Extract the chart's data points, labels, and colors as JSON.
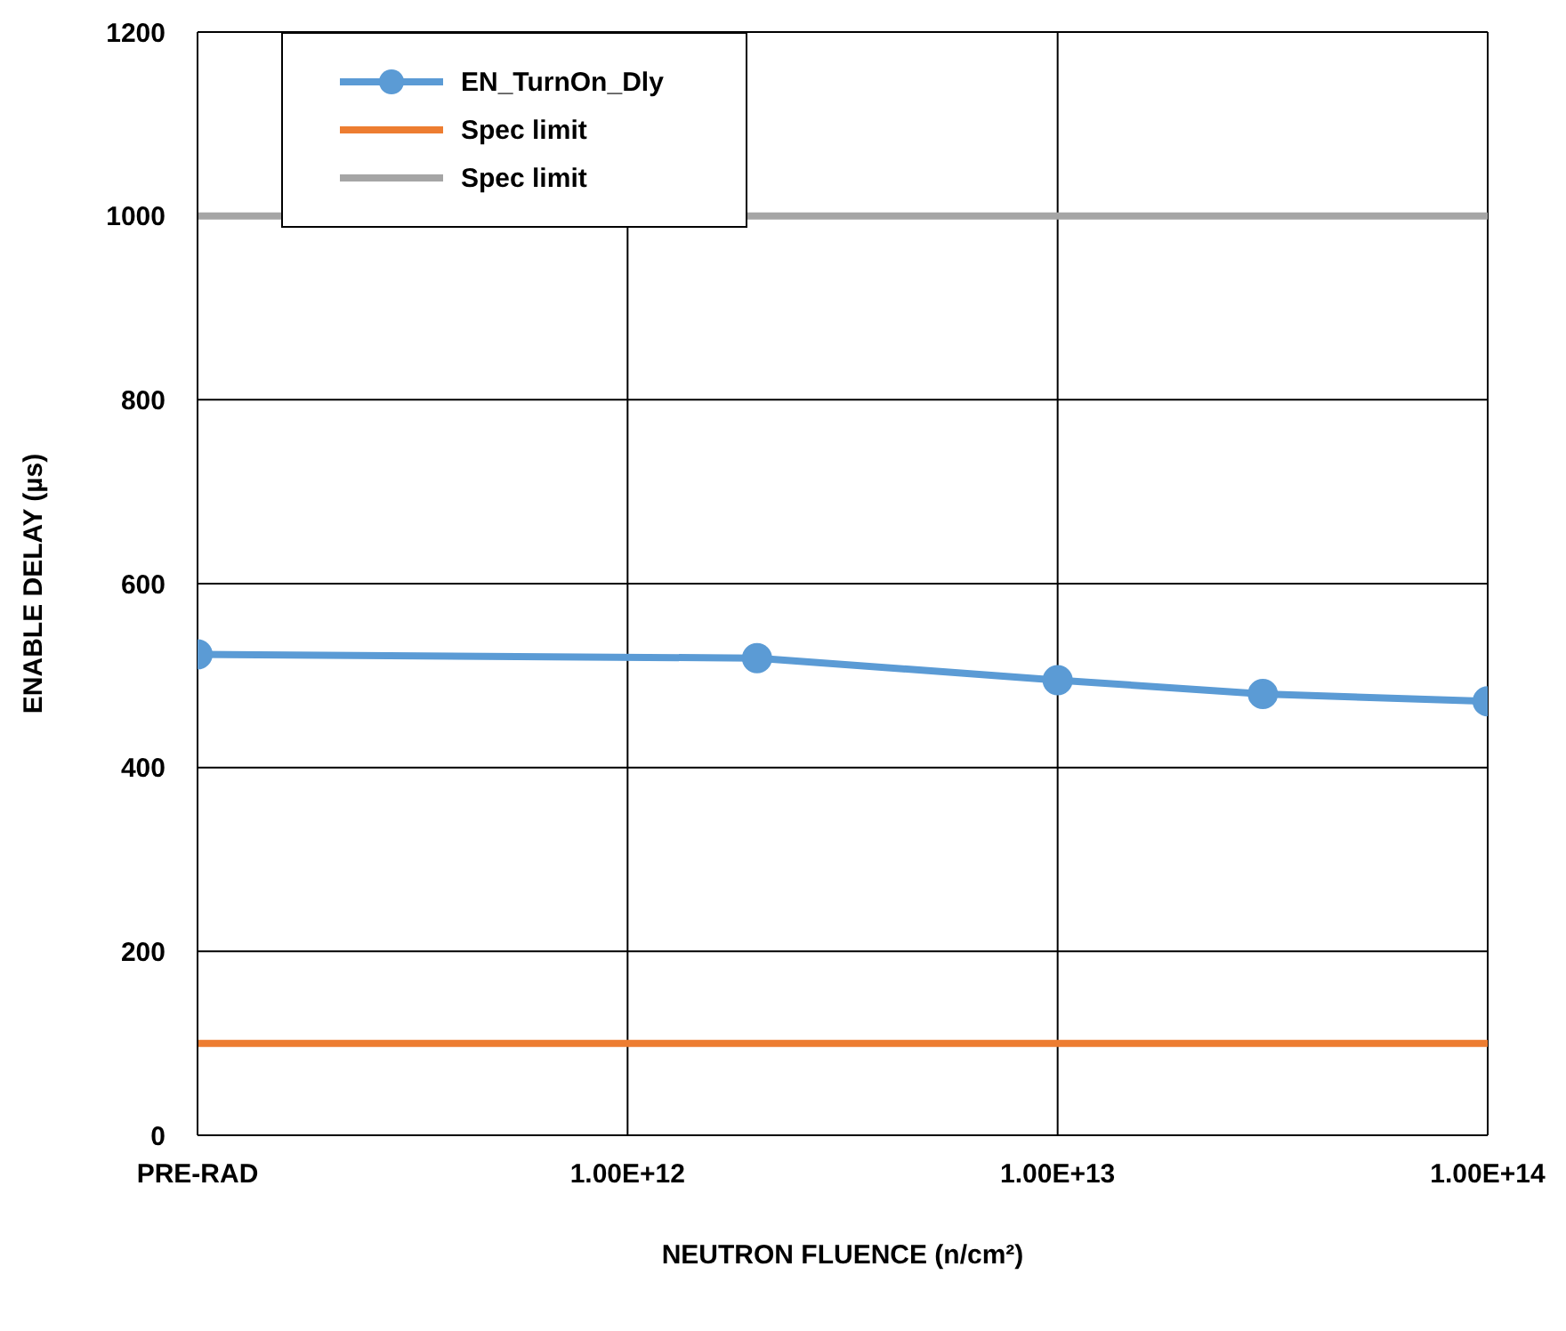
{
  "chart_data": {
    "type": "line",
    "xlabel": "NEUTRON FLUENCE (n/cm²)",
    "ylabel": "ENABLE DELAY (µs)",
    "log": "x",
    "xlim": [
      100000000000.0,
      100000000000000.0
    ],
    "xticks": [
      {
        "value": 100000000000.0,
        "label": "PRE-RAD"
      },
      {
        "value": 1000000000000.0,
        "label": "1.00E+12"
      },
      {
        "value": 10000000000000.0,
        "label": "1.00E+13"
      },
      {
        "value": 100000000000000.0,
        "label": "1.00E+14"
      }
    ],
    "ylim": [
      0,
      1200
    ],
    "yticks": [
      0,
      200,
      400,
      600,
      800,
      1000,
      1200
    ],
    "grid": true,
    "legend": "top left",
    "series": [
      {
        "name": "EN_TurnOn_Dly",
        "color": "#5b9bd5",
        "x": [
          100000000000.0,
          2000000000000.0,
          10000000000000.0,
          30000000000000.0,
          100000000000000.0
        ],
        "values": [
          523,
          519,
          495,
          480,
          472
        ],
        "marker": "circle"
      },
      {
        "name": "Spec limit",
        "color": "#ed7d31",
        "x": [
          100000000000.0,
          100000000000000.0
        ],
        "values": [
          100,
          100
        ],
        "marker": "none"
      },
      {
        "name": "Spec limit",
        "color": "#a5a5a5",
        "x": [
          100000000000.0,
          100000000000000.0
        ],
        "values": [
          1000,
          1000
        ],
        "marker": "none"
      }
    ]
  }
}
